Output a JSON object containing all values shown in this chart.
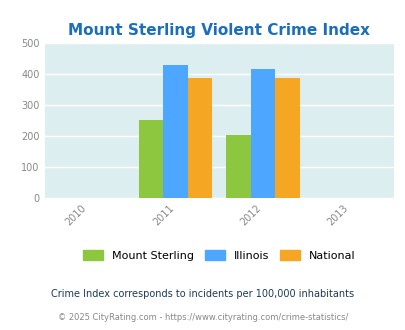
{
  "title": "Mount Sterling Violent Crime Index",
  "years": [
    2011,
    2012
  ],
  "mount_sterling": [
    250,
    204
  ],
  "illinois": [
    430,
    416
  ],
  "national": [
    387,
    387
  ],
  "bar_colors": {
    "mount_sterling": "#8dc63f",
    "illinois": "#4da6ff",
    "national": "#f5a623"
  },
  "xlim": [
    2009.5,
    2013.5
  ],
  "ylim": [
    0,
    500
  ],
  "yticks": [
    0,
    100,
    200,
    300,
    400,
    500
  ],
  "xticks": [
    2010,
    2011,
    2012,
    2013
  ],
  "background_color": "#ddeef0",
  "fig_background": "#ffffff",
  "title_color": "#1a6ebd",
  "title_fontsize": 11,
  "legend_labels": [
    "Mount Sterling",
    "Illinois",
    "National"
  ],
  "footnote1": "Crime Index corresponds to incidents per 100,000 inhabitants",
  "footnote2": "© 2025 CityRating.com - https://www.cityrating.com/crime-statistics/",
  "bar_width": 0.28
}
